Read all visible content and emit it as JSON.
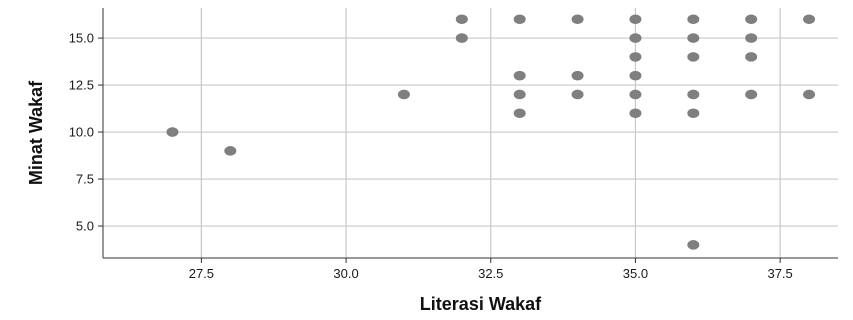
{
  "chart_data": {
    "type": "scatter",
    "title": "",
    "xlabel": "Literasi Wakaf",
    "ylabel": "Minat Wakaf",
    "xlim": [
      25.8,
      38.5
    ],
    "ylim": [
      3.3,
      16.6
    ],
    "x_ticks": [
      27.5,
      30.0,
      32.5,
      35.0,
      37.5
    ],
    "x_tick_labels": [
      "27.5",
      "30.0",
      "32.5",
      "35.0",
      "37.5"
    ],
    "y_ticks": [
      5.0,
      7.5,
      10.0,
      12.5,
      15.0
    ],
    "y_tick_labels": [
      "5.0",
      "7.5",
      "10.0",
      "12.5",
      "15.0"
    ],
    "grid": true,
    "colors": {
      "point": "#7f7f7f",
      "grid": "#c8c8c8",
      "axis": "#333333",
      "background": "#ffffff"
    },
    "points": [
      {
        "x": 27,
        "y": 10
      },
      {
        "x": 28,
        "y": 9
      },
      {
        "x": 31,
        "y": 12
      },
      {
        "x": 32,
        "y": 16
      },
      {
        "x": 32,
        "y": 15
      },
      {
        "x": 33,
        "y": 16
      },
      {
        "x": 33,
        "y": 13
      },
      {
        "x": 33,
        "y": 12
      },
      {
        "x": 33,
        "y": 11
      },
      {
        "x": 34,
        "y": 16
      },
      {
        "x": 34,
        "y": 13
      },
      {
        "x": 34,
        "y": 12
      },
      {
        "x": 35,
        "y": 16
      },
      {
        "x": 35,
        "y": 15
      },
      {
        "x": 35,
        "y": 14
      },
      {
        "x": 35,
        "y": 13
      },
      {
        "x": 35,
        "y": 12
      },
      {
        "x": 35,
        "y": 11
      },
      {
        "x": 36,
        "y": 16
      },
      {
        "x": 36,
        "y": 15
      },
      {
        "x": 36,
        "y": 14
      },
      {
        "x": 36,
        "y": 12
      },
      {
        "x": 36,
        "y": 11
      },
      {
        "x": 36,
        "y": 4
      },
      {
        "x": 37,
        "y": 16
      },
      {
        "x": 37,
        "y": 15
      },
      {
        "x": 37,
        "y": 14
      },
      {
        "x": 37,
        "y": 12
      },
      {
        "x": 38,
        "y": 16
      },
      {
        "x": 38,
        "y": 12
      }
    ]
  }
}
